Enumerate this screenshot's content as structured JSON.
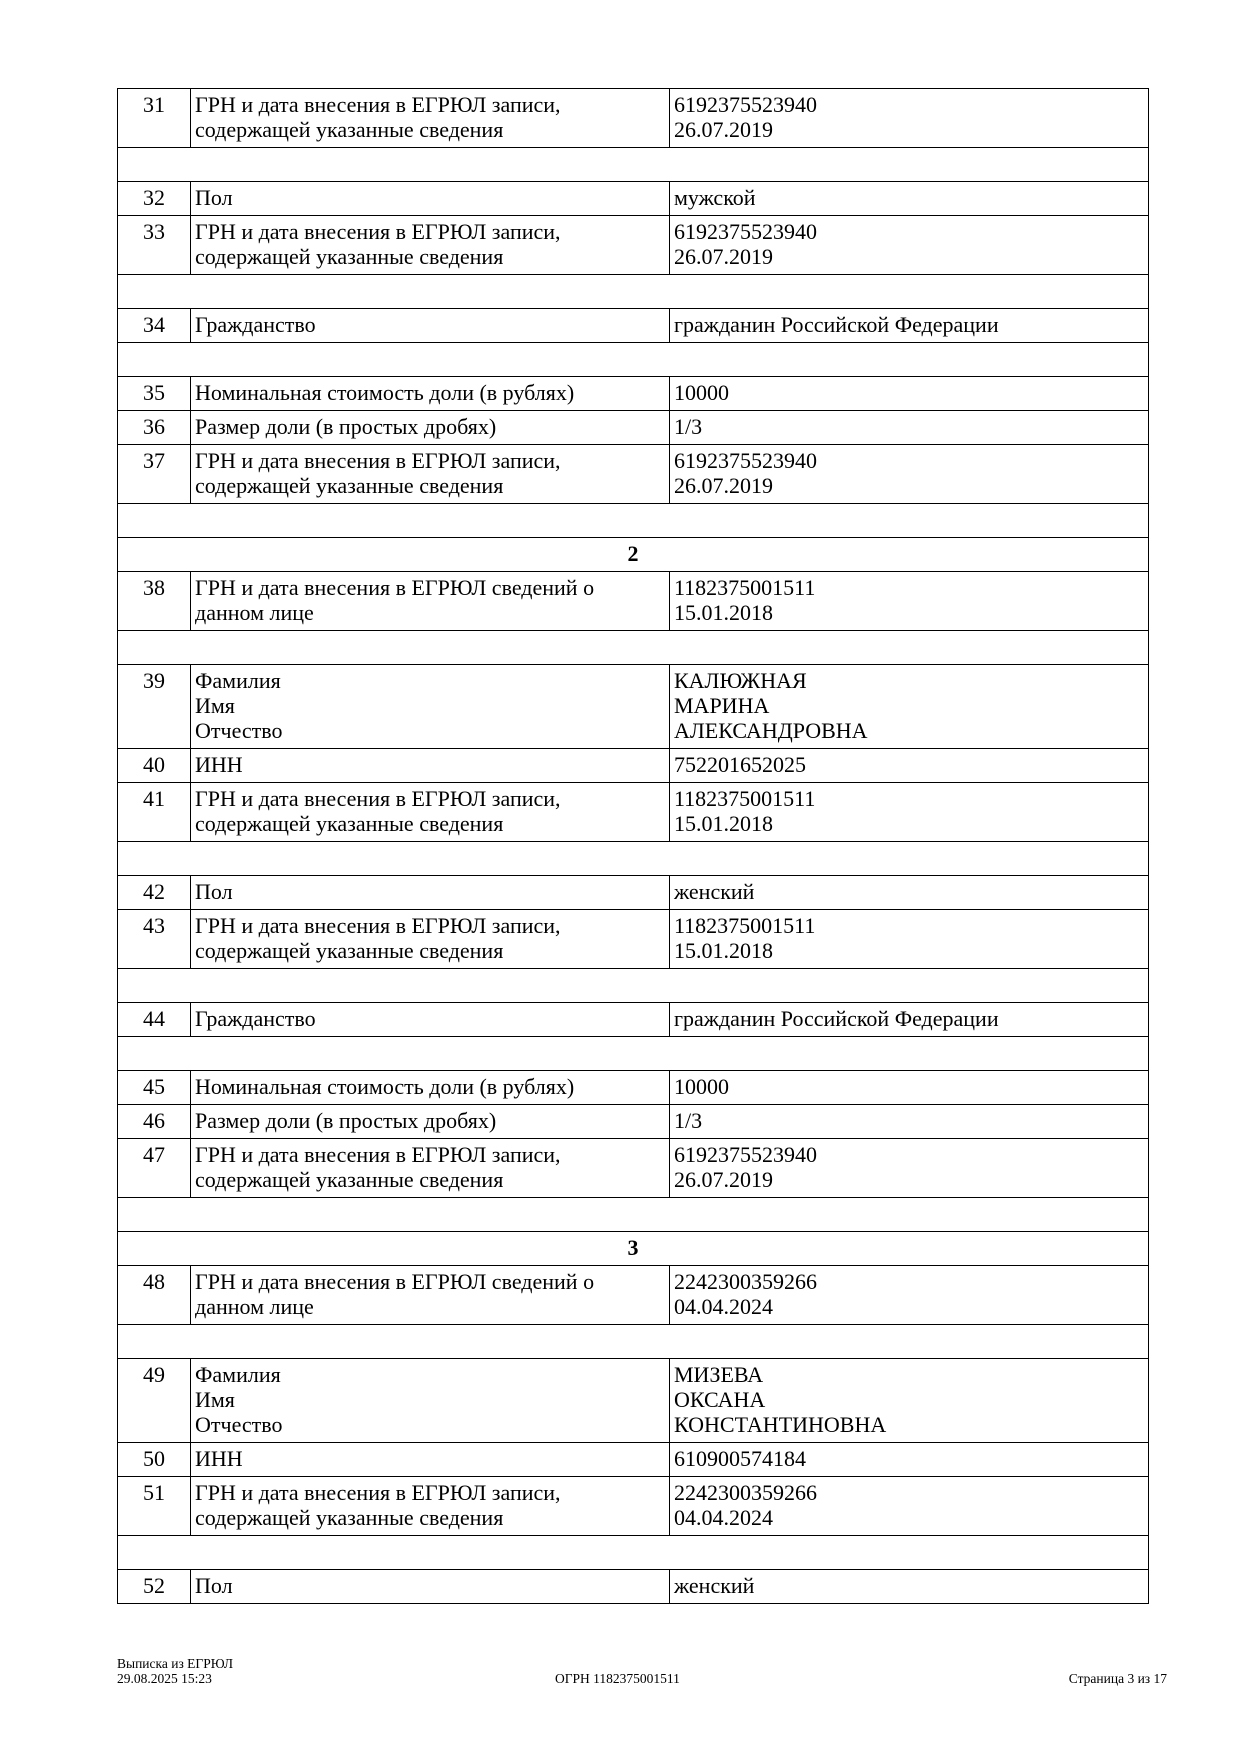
{
  "rows": [
    {
      "type": "data",
      "num": "31",
      "label": [
        "ГРН и дата внесения в ЕГРЮЛ записи,",
        "содержащей указанные сведения"
      ],
      "value": [
        "6192375523940",
        "26.07.2019"
      ]
    },
    {
      "type": "blank"
    },
    {
      "type": "data",
      "num": "32",
      "label": [
        "Пол"
      ],
      "value": [
        "мужской"
      ]
    },
    {
      "type": "data",
      "num": "33",
      "label": [
        "ГРН и дата внесения в ЕГРЮЛ записи,",
        "содержащей указанные сведения"
      ],
      "value": [
        "6192375523940",
        "26.07.2019"
      ]
    },
    {
      "type": "blank"
    },
    {
      "type": "data",
      "num": "34",
      "label": [
        "Гражданство"
      ],
      "value": [
        "гражданин Российской Федерации"
      ]
    },
    {
      "type": "blank"
    },
    {
      "type": "data",
      "num": "35",
      "label": [
        "Номинальная стоимость доли (в рублях)"
      ],
      "value": [
        "10000"
      ]
    },
    {
      "type": "data",
      "num": "36",
      "label": [
        "Размер доли (в простых дробях)"
      ],
      "value": [
        "1/3"
      ]
    },
    {
      "type": "data",
      "num": "37",
      "label": [
        "ГРН и дата внесения в ЕГРЮЛ записи,",
        "содержащей указанные сведения"
      ],
      "value": [
        "6192375523940",
        "26.07.2019"
      ]
    },
    {
      "type": "blank"
    },
    {
      "type": "section",
      "title": "2"
    },
    {
      "type": "data",
      "num": "38",
      "label": [
        "ГРН и дата внесения в ЕГРЮЛ сведений о",
        "данном лице"
      ],
      "value": [
        "1182375001511",
        "15.01.2018"
      ]
    },
    {
      "type": "blank"
    },
    {
      "type": "data",
      "num": "39",
      "label": [
        "Фамилия",
        "Имя",
        "Отчество"
      ],
      "value": [
        "КАЛЮЖНАЯ",
        "МАРИНА",
        "АЛЕКСАНДРОВНА"
      ]
    },
    {
      "type": "data",
      "num": "40",
      "label": [
        "ИНН"
      ],
      "value": [
        "752201652025"
      ]
    },
    {
      "type": "data",
      "num": "41",
      "label": [
        "ГРН и дата внесения в ЕГРЮЛ записи,",
        "содержащей указанные сведения"
      ],
      "value": [
        "1182375001511",
        "15.01.2018"
      ]
    },
    {
      "type": "blank"
    },
    {
      "type": "data",
      "num": "42",
      "label": [
        "Пол"
      ],
      "value": [
        "женский"
      ]
    },
    {
      "type": "data",
      "num": "43",
      "label": [
        "ГРН и дата внесения в ЕГРЮЛ записи,",
        "содержащей указанные сведения"
      ],
      "value": [
        "1182375001511",
        "15.01.2018"
      ]
    },
    {
      "type": "blank"
    },
    {
      "type": "data",
      "num": "44",
      "label": [
        "Гражданство"
      ],
      "value": [
        "гражданин Российской Федерации"
      ]
    },
    {
      "type": "blank"
    },
    {
      "type": "data",
      "num": "45",
      "label": [
        "Номинальная стоимость доли (в рублях)"
      ],
      "value": [
        "10000"
      ]
    },
    {
      "type": "data",
      "num": "46",
      "label": [
        "Размер доли (в простых дробях)"
      ],
      "value": [
        "1/3"
      ]
    },
    {
      "type": "data",
      "num": "47",
      "label": [
        "ГРН и дата внесения в ЕГРЮЛ записи,",
        "содержащей указанные сведения"
      ],
      "value": [
        "6192375523940",
        "26.07.2019"
      ]
    },
    {
      "type": "blank"
    },
    {
      "type": "section",
      "title": "3"
    },
    {
      "type": "data",
      "num": "48",
      "label": [
        "ГРН и дата внесения в ЕГРЮЛ сведений о",
        "данном лице"
      ],
      "value": [
        "2242300359266",
        "04.04.2024"
      ]
    },
    {
      "type": "blank"
    },
    {
      "type": "data",
      "num": "49",
      "label": [
        "Фамилия",
        "Имя",
        "Отчество"
      ],
      "value": [
        "МИЗЕВА",
        "ОКСАНА",
        "КОНСТАНТИНОВНА"
      ]
    },
    {
      "type": "data",
      "num": "50",
      "label": [
        "ИНН"
      ],
      "value": [
        "610900574184"
      ]
    },
    {
      "type": "data",
      "num": "51",
      "label": [
        "ГРН и дата внесения в ЕГРЮЛ записи,",
        "содержащей указанные сведения"
      ],
      "value": [
        "2242300359266",
        "04.04.2024"
      ]
    },
    {
      "type": "blank"
    },
    {
      "type": "data",
      "num": "52",
      "label": [
        "Пол"
      ],
      "value": [
        "женский"
      ]
    }
  ],
  "footer": {
    "doc_title": "Выписка из ЕГРЮЛ",
    "datetime": "29.08.2025 15:23",
    "ogrn": "ОГРН 1182375001511",
    "page": "Страница 3 из 17"
  }
}
